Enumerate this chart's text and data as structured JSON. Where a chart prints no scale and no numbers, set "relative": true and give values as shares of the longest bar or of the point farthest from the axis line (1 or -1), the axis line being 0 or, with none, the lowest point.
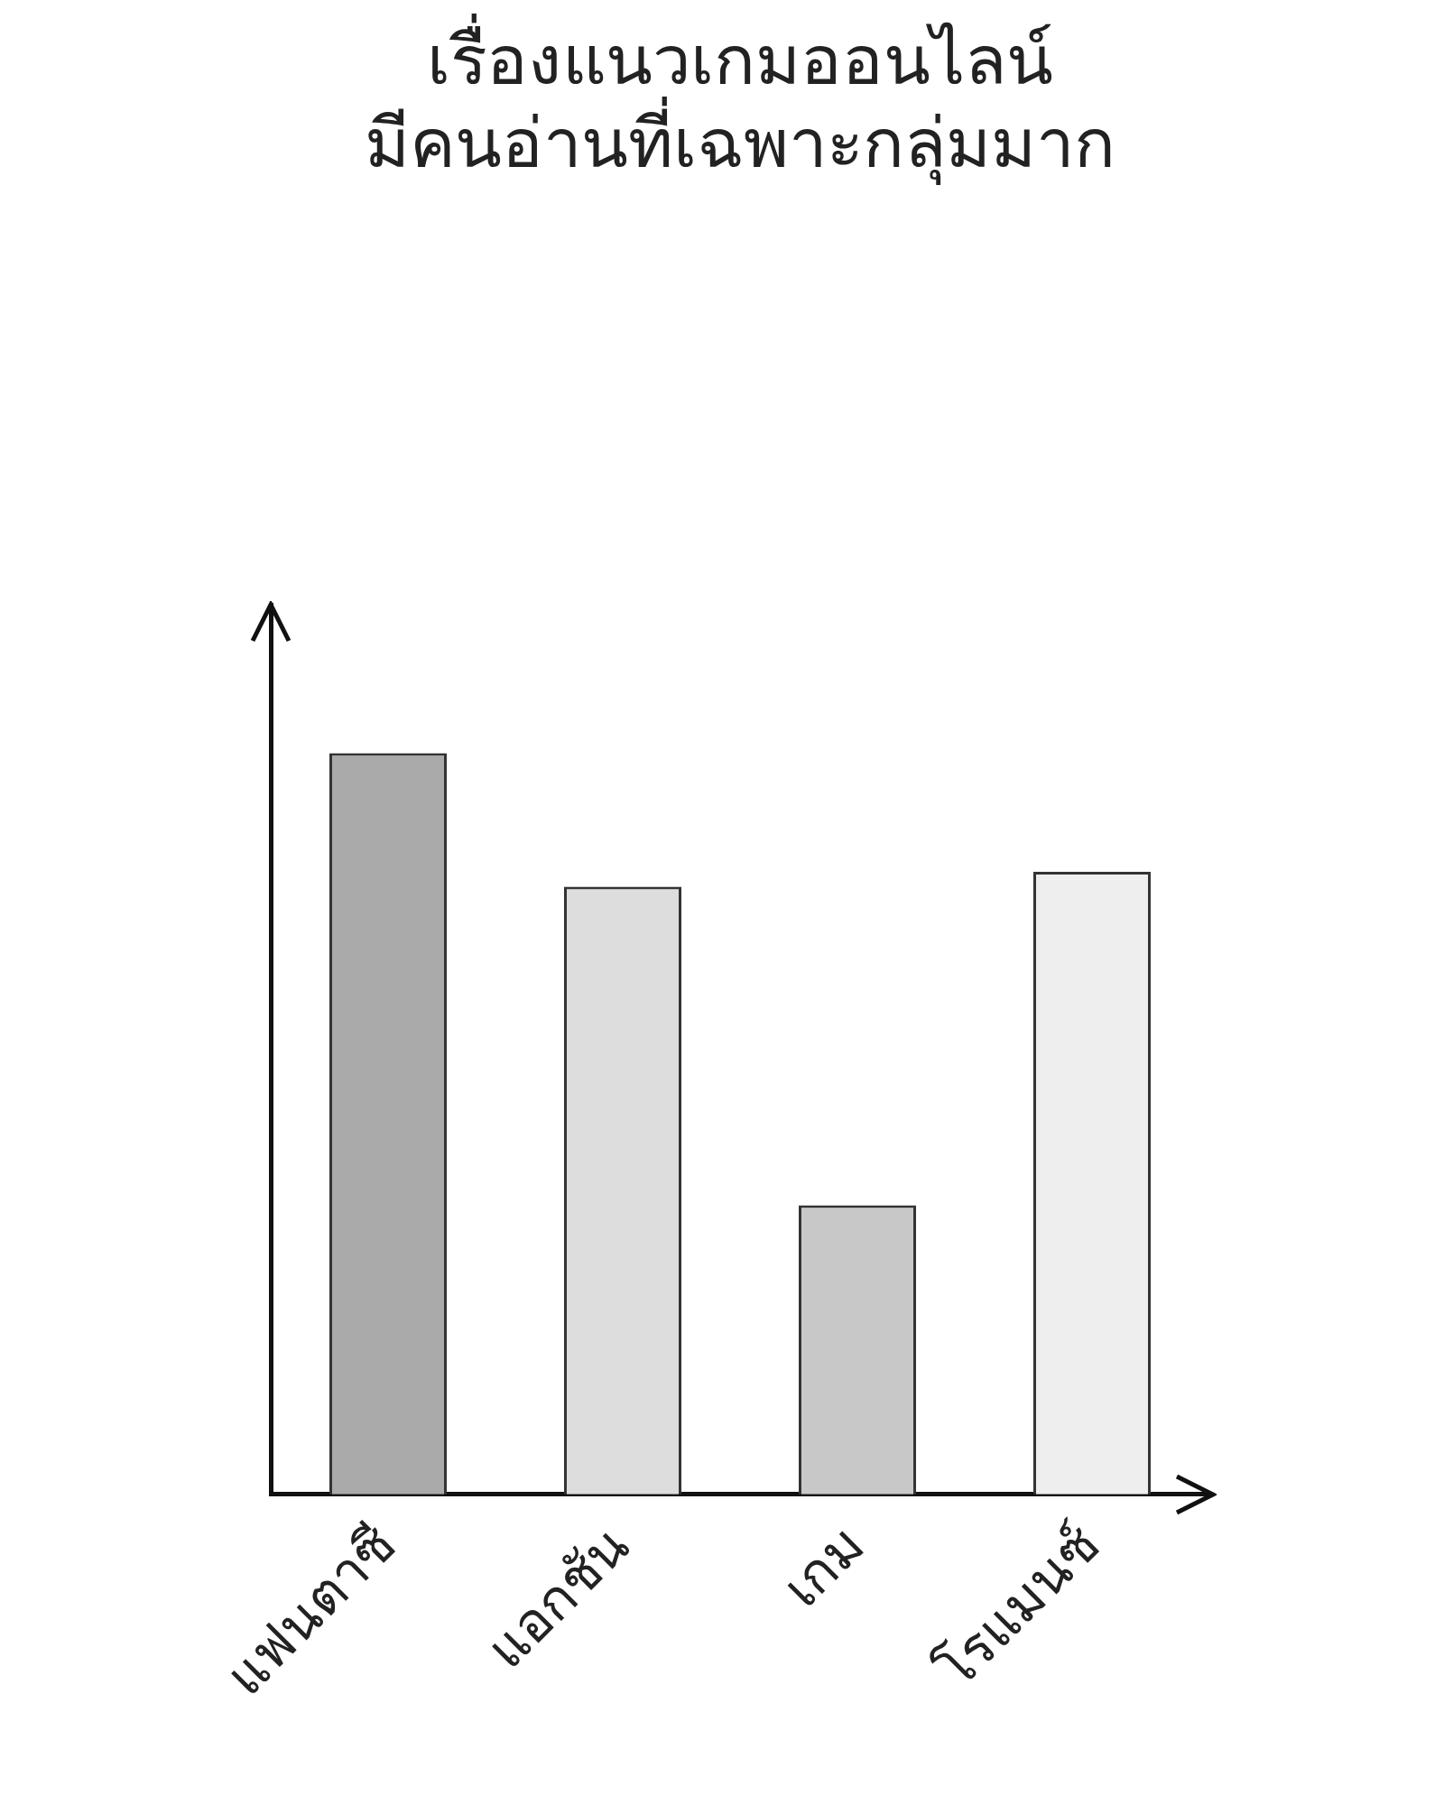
{
  "chart_data": {
    "type": "bar",
    "title": "เรื่องแนวเกมออนไลน์\nมีคนอ่านที่เฉพาะกลุ่มมาก",
    "categories": [
      "แฟนตาซี",
      "แอกชัน",
      "เกม",
      "โรแมนซ์"
    ],
    "values": [
      1,
      0.82,
      0.39,
      0.84
    ],
    "colors": [
      "#aaaaaa",
      "#dddddd",
      "#c8c8c8",
      "#eeeeee"
    ],
    "relative": true,
    "grid": false,
    "legend": false
  }
}
